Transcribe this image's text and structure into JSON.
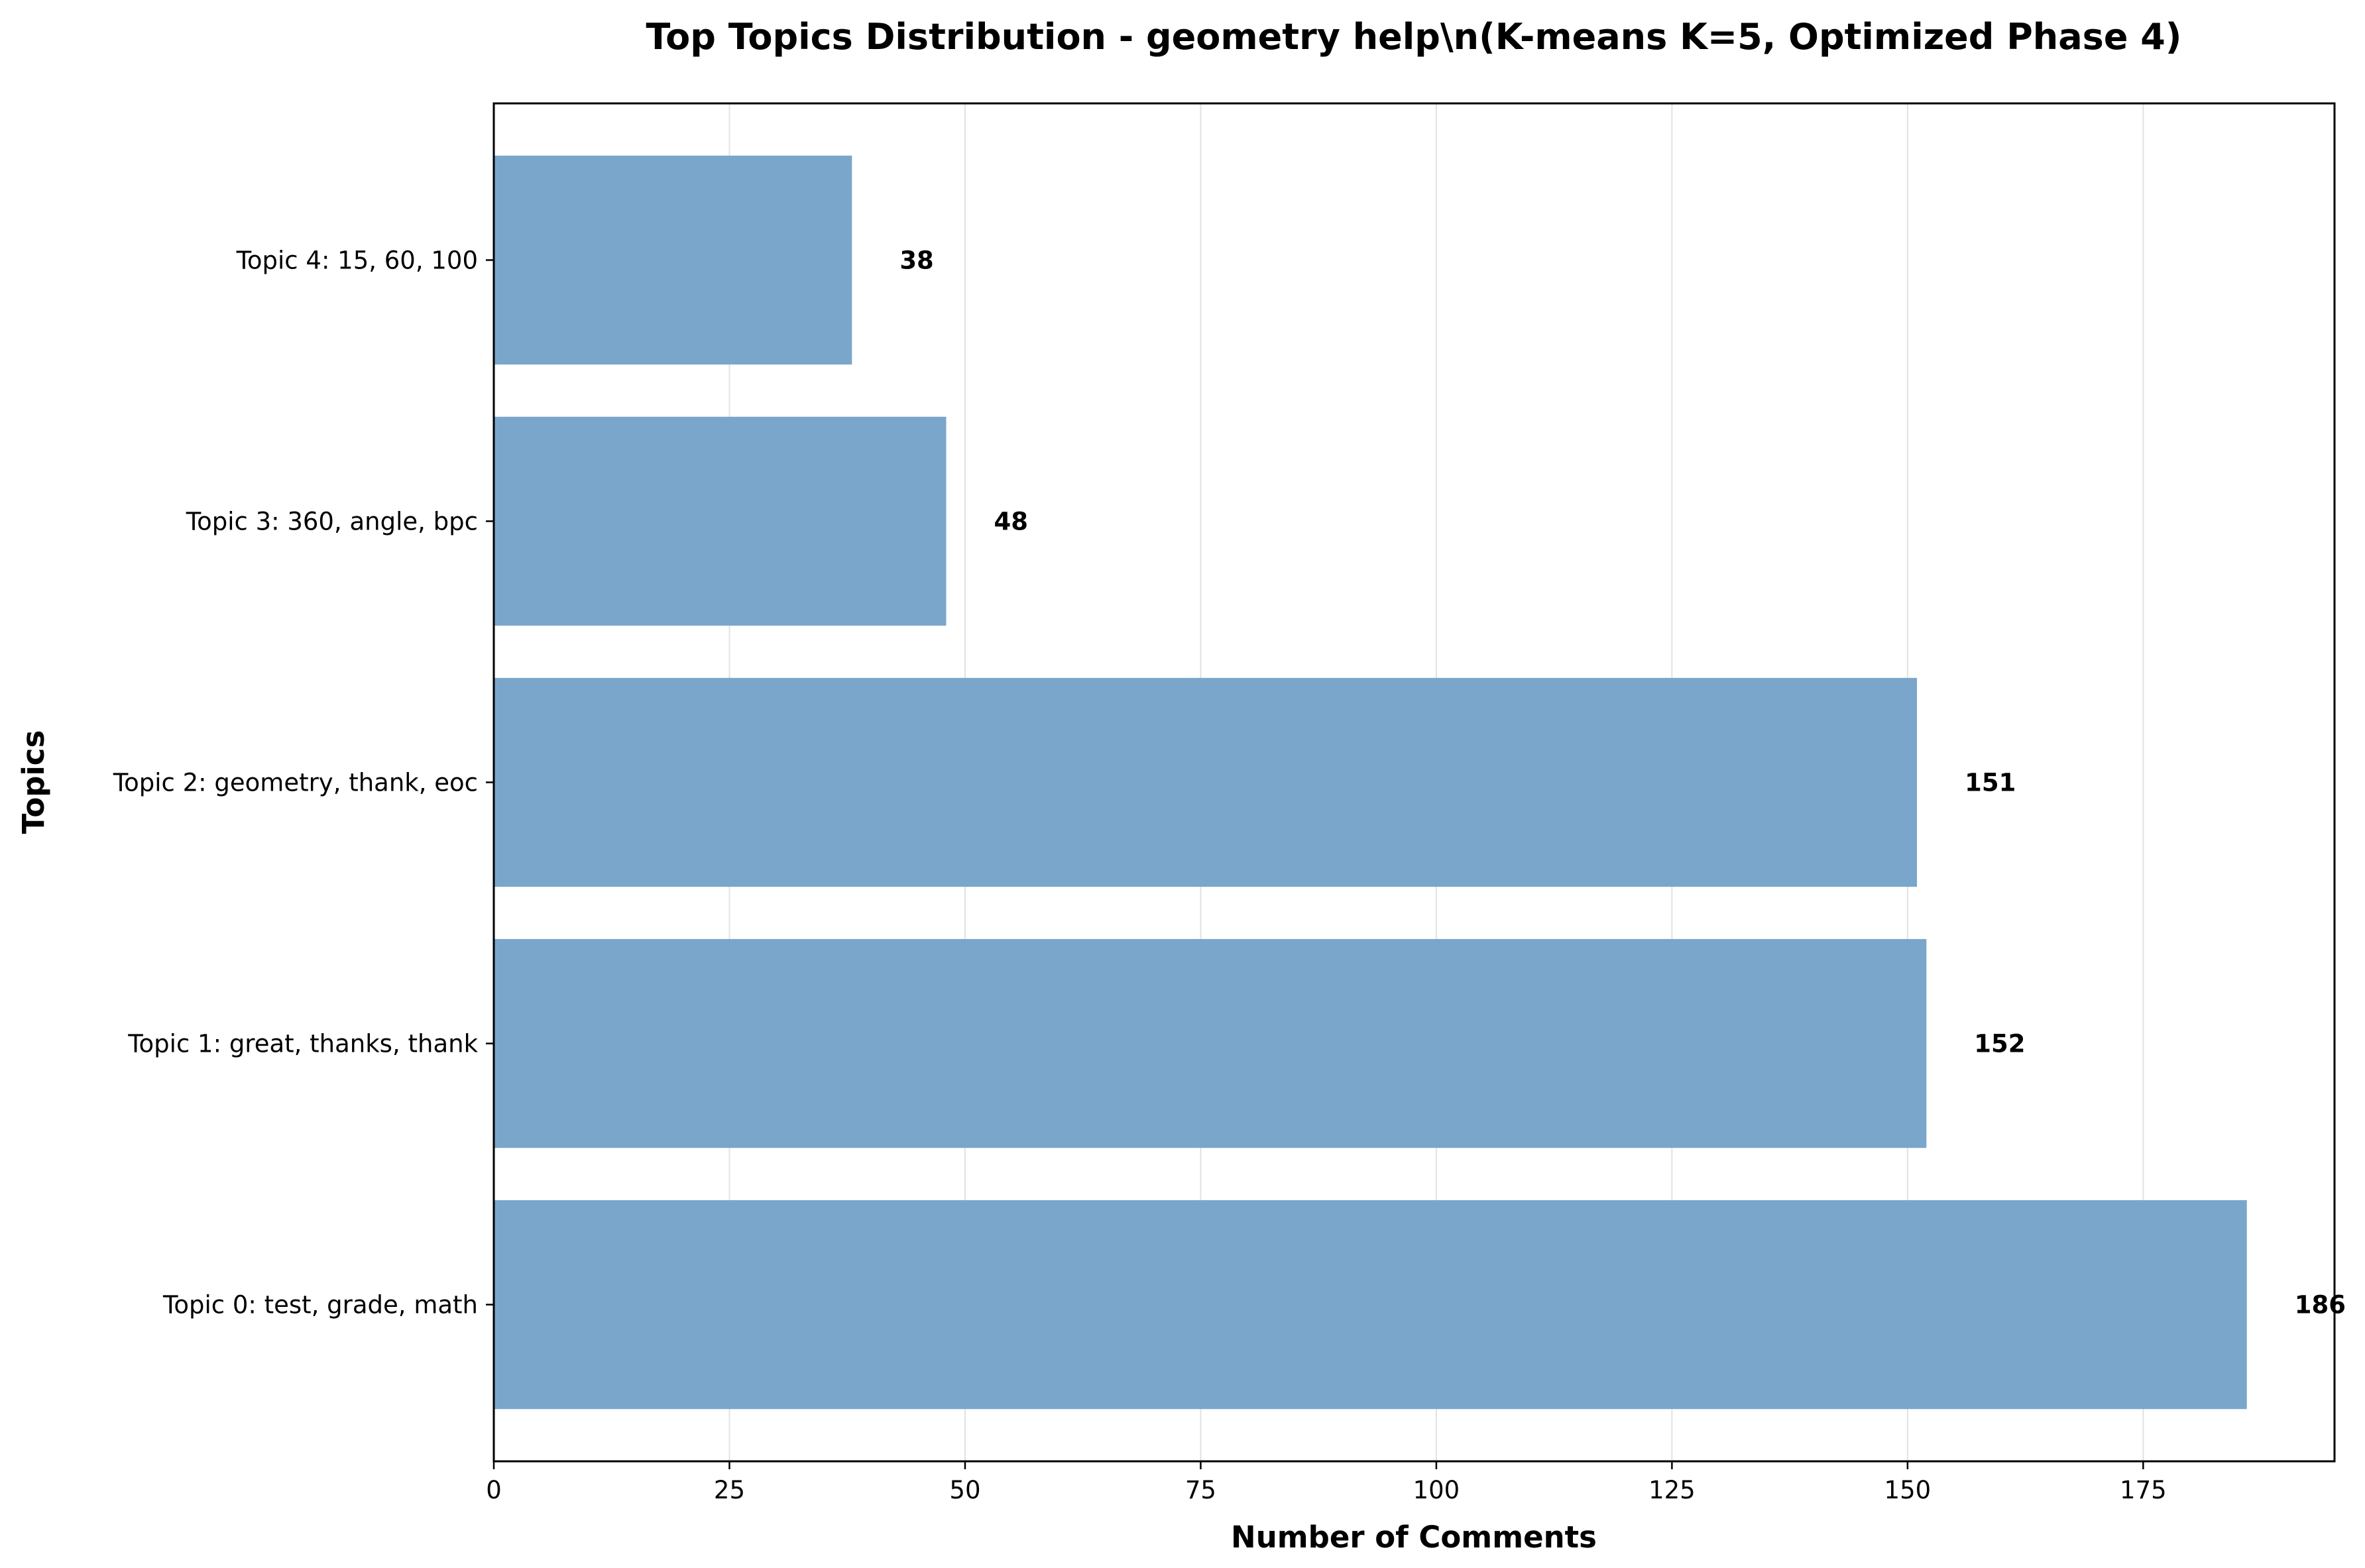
{
  "chart_data": {
    "type": "bar",
    "orientation": "horizontal",
    "title": "Top Topics Distribution - geometry help\\n(K-means K=5, Optimized Phase 4)",
    "xlabel": "Number of Comments",
    "ylabel": "Topics",
    "categories": [
      "Topic 0: test, grade, math",
      "Topic 1: great, thanks, thank",
      "Topic 2: geometry, thank, eoc",
      "Topic 3: 360, angle, bpc",
      "Topic 4: 15, 60, 100"
    ],
    "values": [
      186,
      152,
      151,
      48,
      38
    ],
    "data_labels": [
      "186",
      "152",
      "151",
      "48",
      "38"
    ],
    "xlim": [
      0,
      195.3
    ],
    "xticks": [
      0,
      25,
      50,
      75,
      100,
      125,
      150,
      175
    ],
    "xtick_labels": [
      "0",
      "25",
      "50",
      "75",
      "100",
      "125",
      "150",
      "175"
    ],
    "grid": "x",
    "legend": "none",
    "bar_color": "#7ba6cb"
  }
}
